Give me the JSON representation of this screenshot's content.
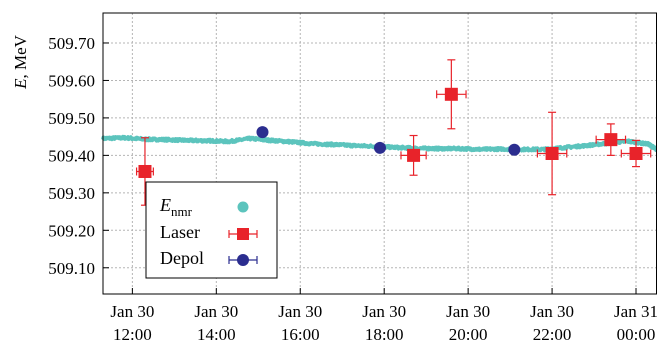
{
  "chart_data": {
    "type": "scatter",
    "ylabel": "E, MeV",
    "ylabel_italic_part": "E",
    "ylabel_rest": ", MeV",
    "ylim": [
      509.03,
      509.78
    ],
    "x_range_hours": [
      11.3,
      24.5
    ],
    "yticks": [
      509.1,
      509.2,
      509.3,
      509.4,
      509.5,
      509.6,
      509.7
    ],
    "ytick_labels": [
      "509.10",
      "509.20",
      "509.30",
      "509.40",
      "509.50",
      "509.60",
      "509.70"
    ],
    "xticks": [
      {
        "h": 12,
        "line1": "Jan 30",
        "line2": "12:00"
      },
      {
        "h": 14,
        "line1": "Jan 30",
        "line2": "14:00"
      },
      {
        "h": 16,
        "line1": "Jan 30",
        "line2": "16:00"
      },
      {
        "h": 18,
        "line1": "Jan 30",
        "line2": "18:00"
      },
      {
        "h": 20,
        "line1": "Jan 30",
        "line2": "20:00"
      },
      {
        "h": 22,
        "line1": "Jan 30",
        "line2": "22:00"
      },
      {
        "h": 24,
        "line1": "Jan 31",
        "line2": "00:00"
      }
    ],
    "grid": true,
    "legend_position": "bottom-left",
    "series": [
      {
        "name": "Enmr",
        "legend_main": "E",
        "legend_sub": "nmr",
        "kind": "band",
        "color": "#5cc4bd",
        "x": [
          11.3,
          11.8,
          12.3,
          12.8,
          13.3,
          13.8,
          14.3,
          14.8,
          15.3,
          15.8,
          16.3,
          16.8,
          17.3,
          17.8,
          18.3,
          18.8,
          19.3,
          19.8,
          20.3,
          20.8,
          21.3,
          21.8,
          22.3,
          22.8,
          23.3,
          23.8,
          24.3,
          24.5
        ],
        "y": [
          509.445,
          509.447,
          509.443,
          509.442,
          509.44,
          509.439,
          509.437,
          509.445,
          509.44,
          509.436,
          509.431,
          509.429,
          509.426,
          509.424,
          509.421,
          509.419,
          509.418,
          509.418,
          509.416,
          509.417,
          509.416,
          509.416,
          509.421,
          509.426,
          509.432,
          509.438,
          509.43,
          509.415
        ]
      },
      {
        "name": "Laser",
        "kind": "points",
        "marker": "square",
        "color": "#e8232a",
        "points": [
          {
            "x": 12.3,
            "y": 509.357,
            "xerr": 0.2,
            "yerr": 0.09
          },
          {
            "x": 18.7,
            "y": 509.4,
            "xerr": 0.3,
            "yerr": 0.053
          },
          {
            "x": 19.6,
            "y": 509.563,
            "xerr": 0.35,
            "yerr": 0.092
          },
          {
            "x": 22.0,
            "y": 509.405,
            "xerr": 0.35,
            "yerr": 0.11
          },
          {
            "x": 23.4,
            "y": 509.442,
            "xerr": 0.35,
            "yerr": 0.042
          },
          {
            "x": 24.0,
            "y": 509.405,
            "xerr": 0.35,
            "yerr": 0.035
          }
        ]
      },
      {
        "name": "Depol",
        "kind": "points",
        "marker": "circle",
        "color": "#2b2d8f",
        "points": [
          {
            "x": 15.1,
            "y": 509.462,
            "xerr": 0.0,
            "yerr": 0.0
          },
          {
            "x": 17.9,
            "y": 509.42,
            "xerr": 0.0,
            "yerr": 0.0
          },
          {
            "x": 21.1,
            "y": 509.415,
            "xerr": 0.0,
            "yerr": 0.0
          }
        ]
      }
    ]
  }
}
